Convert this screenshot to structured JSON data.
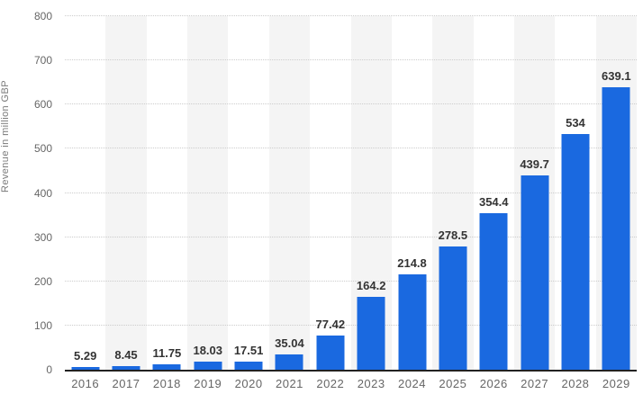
{
  "chart": {
    "ylabel": "Revenue in million GBP"
  },
  "chart_data": {
    "type": "bar",
    "categories": [
      "2016",
      "2017",
      "2018",
      "2019",
      "2020",
      "2021",
      "2022",
      "2023",
      "2024",
      "2025",
      "2026",
      "2027",
      "2028",
      "2029"
    ],
    "values": [
      5.29,
      8.45,
      11.75,
      18.03,
      17.51,
      35.04,
      77.42,
      164.2,
      214.8,
      278.5,
      354.4,
      439.7,
      534,
      639.1
    ],
    "value_labels": [
      "5.29",
      "8.45",
      "11.75",
      "18.03",
      "17.51",
      "35.04",
      "77.42",
      "164.2",
      "214.8",
      "278.5",
      "354.4",
      "439.7",
      "534",
      "639.1"
    ],
    "title": "",
    "xlabel": "",
    "ylabel": "Revenue in million GBP",
    "ylim": [
      0,
      800
    ],
    "ytick_step": 100,
    "ytick_labels": [
      "0",
      "100",
      "200",
      "300",
      "400",
      "500",
      "600",
      "700",
      "800"
    ],
    "grid": "horizontal-dotted",
    "legend": "none",
    "colors": {
      "bar": "#1a69e0",
      "alt_band": "#f4f4f4",
      "gridline": "#cccccc",
      "axis_line": "#222222",
      "value_label": "#333333",
      "tick_label": "#666666"
    }
  }
}
